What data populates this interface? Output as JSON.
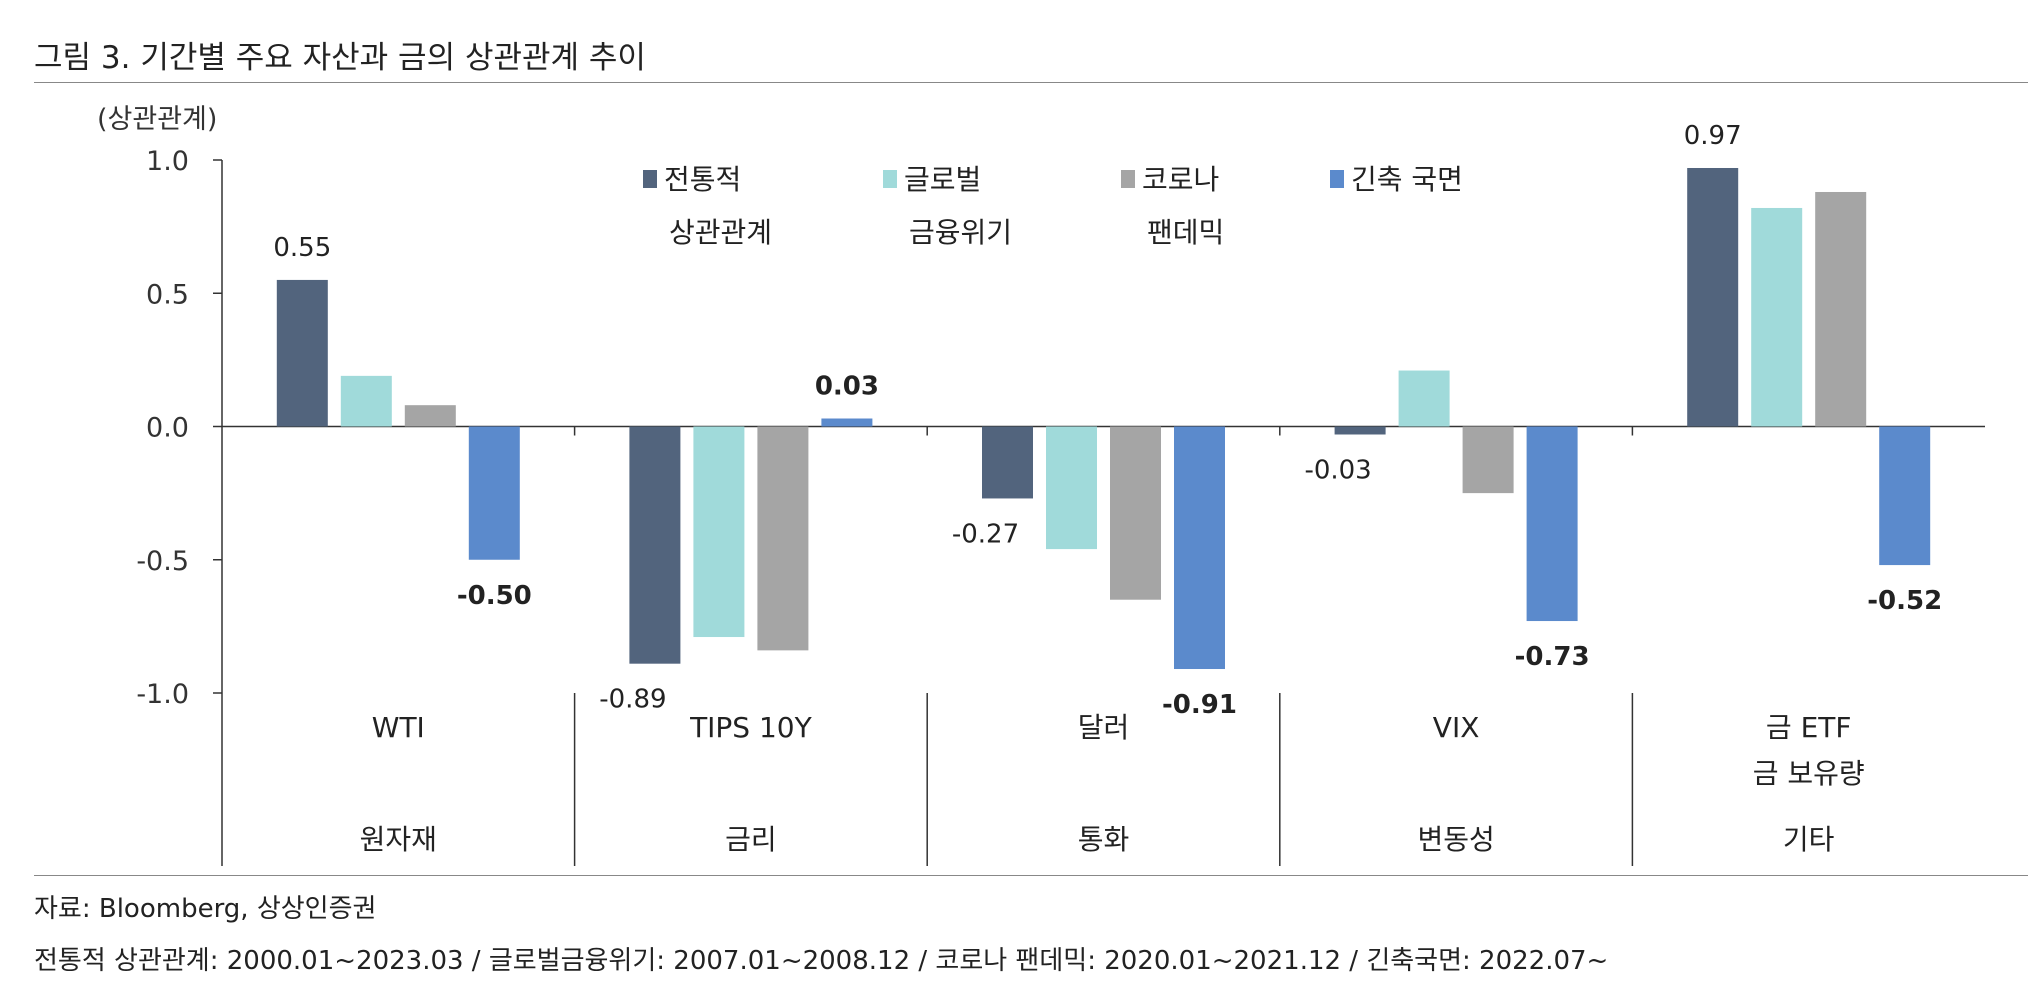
{
  "figure_title": "그림 3. 기간별 주요 자산과 금의 상관관계 추이",
  "source_note": "자료: Bloomberg, 상상인증권",
  "period_note": "전통적 상관관계: 2000.01~2023.03 / 글로벌금융위기: 2007.01~2008.12 / 코로나 팬데믹: 2020.01~2021.12 / 긴축국면: 2022.07~",
  "colors": {
    "traditional": "#52647d",
    "gfc": "#a0dada",
    "covid": "#a5a5a5",
    "tightening": "#5b8acc"
  },
  "chart_data": {
    "type": "bar",
    "title": "그림 3. 기간별 주요 자산과 금의 상관관계 추이",
    "ylabel": "(상관관계)",
    "xlabel": "",
    "ylim": [
      -1.0,
      1.0
    ],
    "yticks": [
      "1.0",
      "0.5",
      "0.0",
      "-0.5",
      "-1.0"
    ],
    "grid": false,
    "legend_position": "top-center",
    "categories": [
      "WTI",
      "TIPS 10Y",
      "달러",
      "VIX",
      "금 ETF 금 보유량"
    ],
    "category_lines": [
      [
        "WTI"
      ],
      [
        "TIPS 10Y"
      ],
      [
        "달러"
      ],
      [
        "VIX"
      ],
      [
        "금 ETF",
        "금 보유량"
      ]
    ],
    "groups": [
      "원자재",
      "금리",
      "통화",
      "변동성",
      "기타"
    ],
    "series": [
      {
        "name": "전통적 상관관계",
        "legend_lines": [
          "전통적",
          "상관관계"
        ],
        "color_key": "traditional",
        "values": [
          0.55,
          -0.89,
          -0.27,
          -0.03,
          0.97
        ],
        "labels": [
          "0.55",
          "-0.89",
          "-0.27",
          "-0.03",
          "0.97"
        ],
        "bold_labels": false
      },
      {
        "name": "글로벌 금융위기",
        "legend_lines": [
          "글로벌",
          "금융위기"
        ],
        "color_key": "gfc",
        "values": [
          0.19,
          -0.79,
          -0.46,
          0.21,
          0.82
        ],
        "labels": [],
        "bold_labels": false
      },
      {
        "name": "코로나 팬데믹",
        "legend_lines": [
          "코로나",
          "팬데믹"
        ],
        "color_key": "covid",
        "values": [
          0.08,
          -0.84,
          -0.65,
          -0.25,
          0.88
        ],
        "labels": [],
        "bold_labels": false
      },
      {
        "name": "긴축 국면",
        "legend_lines": [
          "긴축 국면"
        ],
        "color_key": "tightening",
        "values": [
          -0.5,
          0.03,
          -0.91,
          -0.73,
          -0.52
        ],
        "labels": [
          "-0.50",
          "0.03",
          "-0.91",
          "-0.73",
          "-0.52"
        ],
        "bold_labels": true
      }
    ]
  }
}
